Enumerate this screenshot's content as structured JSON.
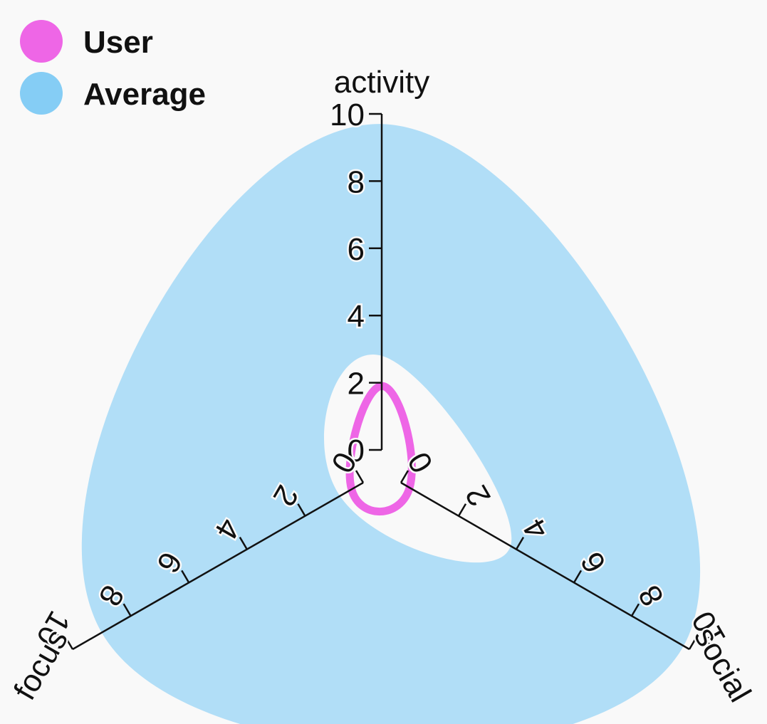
{
  "legend": {
    "items": [
      {
        "label": "User",
        "color": "#ee66e6"
      },
      {
        "label": "Average",
        "color": "#85cdf5"
      }
    ]
  },
  "chart_data": {
    "type": "radar",
    "axes": [
      "activity",
      "social",
      "focus"
    ],
    "range": [
      0,
      10
    ],
    "ticks": [
      0,
      2,
      4,
      6,
      8,
      10
    ],
    "series": [
      {
        "name": "Average",
        "color": "#85cdf5",
        "band_outer": [
          9.7,
          9.8,
          9.0
        ],
        "band_inner": [
          2.8,
          3.8,
          0.8
        ]
      },
      {
        "name": "User",
        "color": "#ee66e6",
        "values": [
          1.9,
          0.3,
          0.4
        ]
      }
    ],
    "legend_position": "top-left"
  }
}
